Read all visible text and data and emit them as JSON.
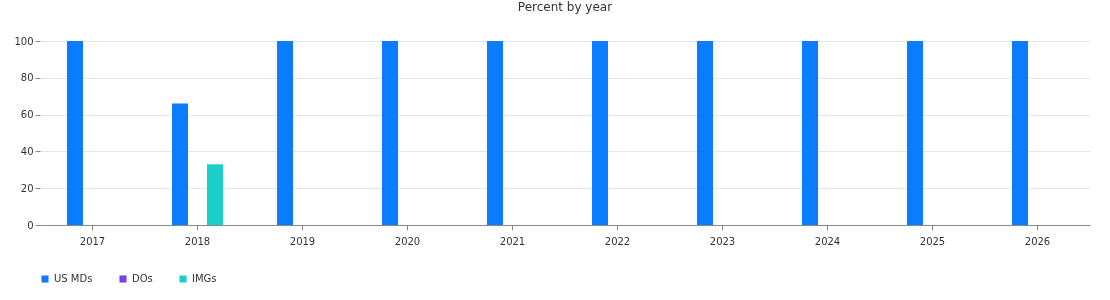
{
  "chart_data": {
    "type": "bar",
    "title": "Percent by year",
    "categories": [
      "2017",
      "2018",
      "2019",
      "2020",
      "2021",
      "2022",
      "2023",
      "2024",
      "2025",
      "2026"
    ],
    "series": [
      {
        "name": "US MDs",
        "color": "#0a7cff",
        "values": [
          100,
          66,
          100,
          100,
          100,
          100,
          100,
          100,
          100,
          100
        ]
      },
      {
        "name": "DOs",
        "color": "#7b3fe4",
        "values": [
          0,
          0,
          0,
          0,
          0,
          0,
          0,
          0,
          0,
          0
        ]
      },
      {
        "name": "IMGs",
        "color": "#1ccfc9",
        "values": [
          0,
          33,
          0,
          0,
          0,
          0,
          0,
          0,
          0,
          0
        ]
      }
    ],
    "ylim": [
      0,
      100
    ],
    "yticks": [
      0,
      20,
      40,
      60,
      80,
      100
    ],
    "grid": "y",
    "legend": "bottom"
  }
}
